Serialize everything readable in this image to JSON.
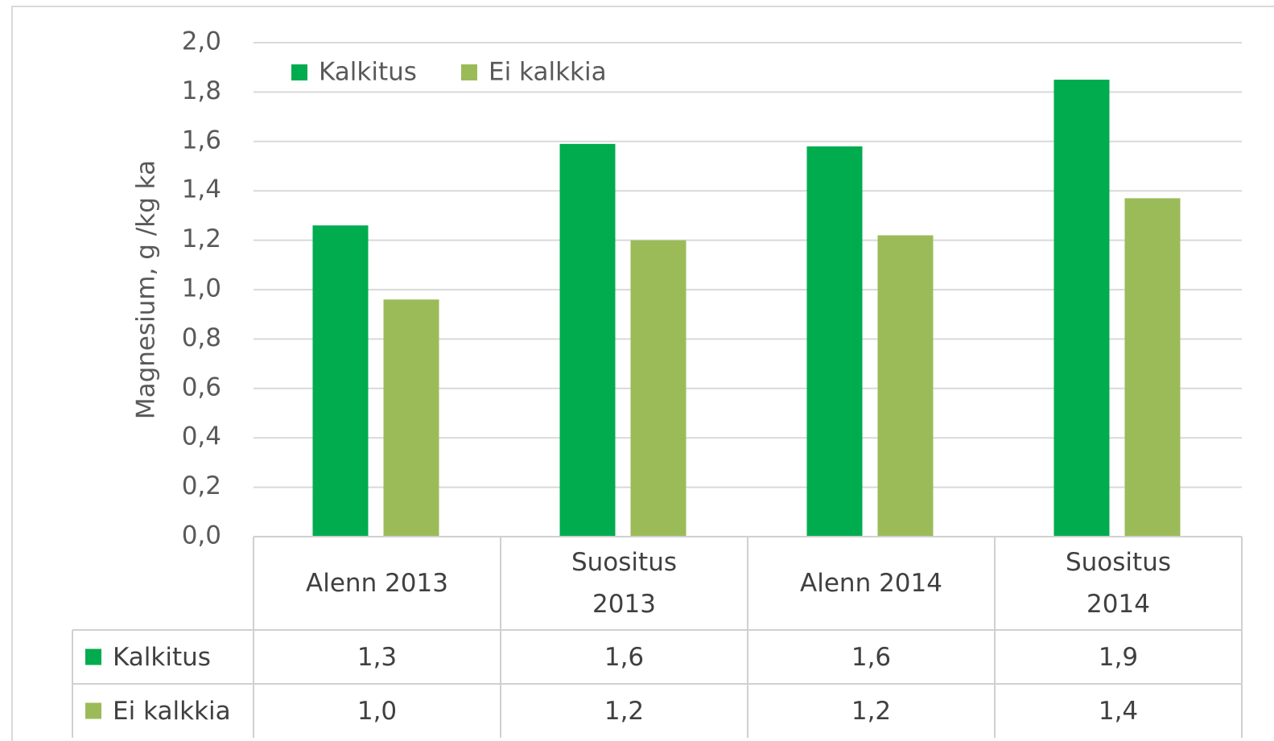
{
  "chart_data": {
    "type": "bar",
    "y_axis_label": "Magnesium, g /kg ka",
    "categories": [
      "Alenn 2013",
      "Suositus 2013",
      "Alenn 2014",
      "Suositus 2014"
    ],
    "series": [
      {
        "name": "Kalkitus",
        "color": "#00ac4e",
        "values": [
          1.26,
          1.59,
          1.58,
          1.85
        ],
        "value_labels": [
          "1,3",
          "1,6",
          "1,6",
          "1,9"
        ]
      },
      {
        "name": "Ei kalkkia",
        "color": "#9bbb59",
        "values": [
          0.96,
          1.2,
          1.22,
          1.37
        ],
        "value_labels": [
          "1,0",
          "1,2",
          "1,2",
          "1,4"
        ]
      }
    ],
    "ylim": [
      0,
      2
    ],
    "yticks": [
      {
        "value": 0,
        "label": "0,0"
      },
      {
        "value": 0.2,
        "label": "0,2"
      },
      {
        "value": 0.4,
        "label": "0,4"
      },
      {
        "value": 0.6,
        "label": "0,6"
      },
      {
        "value": 0.8,
        "label": "0,8"
      },
      {
        "value": 1,
        "label": "1,0"
      },
      {
        "value": 1.2,
        "label": "1,2"
      },
      {
        "value": 1.4,
        "label": "1,4"
      },
      {
        "value": 1.6,
        "label": "1,6"
      },
      {
        "value": 1.8,
        "label": "1,8"
      },
      {
        "value": 2,
        "label": "2,0"
      }
    ],
    "grid": true,
    "legend": "top-left"
  }
}
